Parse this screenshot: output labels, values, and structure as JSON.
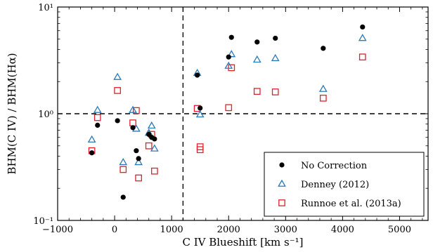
{
  "chart_data": {
    "type": "scatter",
    "xlabel": "C IV Blueshift [km s⁻¹]",
    "ylabel": "BHM(C IV) / BHM(Hα)",
    "xlim": [
      -1000,
      5500
    ],
    "ylim": [
      0.1,
      10
    ],
    "y_scale": "log",
    "x_ticks": [
      -1000,
      0,
      1000,
      2000,
      3000,
      4000,
      5000
    ],
    "x_tick_labels": [
      "−1000",
      "0",
      "1000",
      "2000",
      "3000",
      "4000",
      "5000"
    ],
    "y_ticks": [
      0.1,
      1,
      10
    ],
    "y_tick_labels": [
      "10⁻¹",
      "10⁰",
      "10¹"
    ],
    "grid": false,
    "legend_position": "bottom-right",
    "reference_lines": {
      "vertical_x": 1200,
      "horizontal_y": 1.0,
      "style": "dashed"
    },
    "series": [
      {
        "name": "No Correction",
        "marker": "filled-circle",
        "color": "#000000",
        "points": [
          [
            -400,
            0.43
          ],
          [
            -300,
            0.78
          ],
          [
            50,
            0.86
          ],
          [
            150,
            0.165
          ],
          [
            320,
            0.74
          ],
          [
            380,
            0.45
          ],
          [
            420,
            0.38
          ],
          [
            600,
            0.64
          ],
          [
            650,
            0.6
          ],
          [
            700,
            0.58
          ],
          [
            1450,
            2.3
          ],
          [
            1500,
            1.13
          ],
          [
            2000,
            3.4
          ],
          [
            2050,
            5.2
          ],
          [
            2500,
            4.7
          ],
          [
            2820,
            5.1
          ],
          [
            3660,
            4.1
          ],
          [
            4350,
            6.5
          ]
        ]
      },
      {
        "name": "Denney (2012)",
        "marker": "open-triangle",
        "color": "#2a7ab8",
        "points": [
          [
            -400,
            0.57
          ],
          [
            -300,
            1.08
          ],
          [
            50,
            2.2
          ],
          [
            150,
            0.35
          ],
          [
            320,
            1.08
          ],
          [
            380,
            0.72
          ],
          [
            420,
            0.35
          ],
          [
            600,
            0.66
          ],
          [
            650,
            0.77
          ],
          [
            700,
            0.47
          ],
          [
            1450,
            2.4
          ],
          [
            1500,
            0.98
          ],
          [
            2000,
            2.8
          ],
          [
            2050,
            3.6
          ],
          [
            2500,
            3.2
          ],
          [
            2820,
            3.3
          ],
          [
            3660,
            1.7
          ],
          [
            4350,
            5.1
          ]
        ]
      },
      {
        "name": "Runnoe et al. (2013a)",
        "marker": "open-square",
        "color": "#e0202a",
        "points": [
          [
            -400,
            0.45
          ],
          [
            -300,
            0.92
          ],
          [
            50,
            1.65
          ],
          [
            150,
            0.3
          ],
          [
            320,
            0.82
          ],
          [
            380,
            1.07
          ],
          [
            420,
            0.25
          ],
          [
            600,
            0.5
          ],
          [
            650,
            0.64
          ],
          [
            700,
            0.29
          ],
          [
            1450,
            1.12
          ],
          [
            1500,
            0.46
          ],
          [
            1500,
            0.49
          ],
          [
            2000,
            1.14
          ],
          [
            2050,
            2.7
          ],
          [
            2500,
            1.62
          ],
          [
            2820,
            1.6
          ],
          [
            3660,
            1.4
          ],
          [
            4350,
            3.4
          ]
        ]
      }
    ]
  }
}
